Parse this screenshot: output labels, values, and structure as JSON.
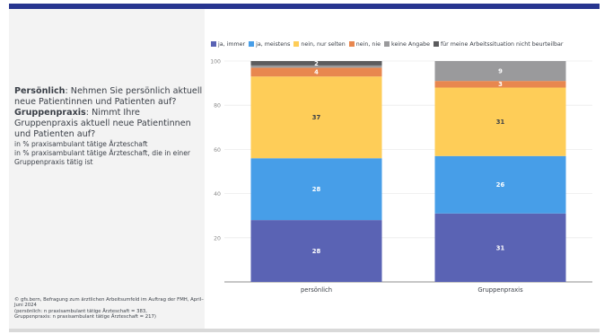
{
  "question": {
    "label1": "Persönlich",
    "text1": ": Nehmen Sie persönlich aktuell neue Patientinnen und Patienten auf?",
    "label2": "Gruppenpraxis",
    "text2": ": Nimmt Ihre Gruppenpraxis aktuell neue Patientinnen und Patienten auf?"
  },
  "note": {
    "line1": "in % praxisambulant tätige Ärzteschaft",
    "line2": "in % praxisambulant tätige Ärzteschaft, die in einer Gruppenpraxis tätig ist"
  },
  "source": {
    "line1": "© gfs.bern, Befragung zum ärztlichen Arbeitsumfeld im Auftrag der FMH, April–Juni 2024",
    "line2": "(persönlich: n praxisambulant tätige Ärzteschaft = 383,",
    "line3": "Gruppenpraxis: n praxisambulant tätige Ärzteschaft = 217)"
  },
  "colors": {
    "top_bar": "#27358f",
    "panel_bg": "#f3f3f3"
  },
  "chart_data": {
    "type": "bar",
    "stacked": true,
    "categories": [
      "persönlich",
      "Gruppenpraxis"
    ],
    "series": [
      {
        "name": "ja, immer",
        "color": "#5a63b4",
        "values": [
          28,
          31
        ]
      },
      {
        "name": "ja, meistens",
        "color": "#479ee8",
        "values": [
          28,
          26
        ]
      },
      {
        "name": "nein, nur selten",
        "color": "#fecd58",
        "values": [
          37,
          31
        ]
      },
      {
        "name": "nein, nie",
        "color": "#e8874f",
        "values": [
          4,
          3
        ]
      },
      {
        "name": "keine Angabe",
        "color": "#9a9a9c",
        "values": [
          1,
          9
        ]
      },
      {
        "name": "für meine Arbeitssituation nicht beurteilbar",
        "color": "#5c5c5e",
        "values": [
          2,
          0
        ]
      }
    ],
    "data_labels": [
      [
        "28",
        "31"
      ],
      [
        "28",
        "26"
      ],
      [
        "37",
        "31"
      ],
      [
        "4",
        "3"
      ],
      [
        "",
        "9"
      ],
      [
        "2",
        ""
      ]
    ],
    "yticks": [
      20,
      40,
      60,
      80,
      100
    ],
    "ylim": [
      0,
      100
    ],
    "grid": true,
    "legend": "top"
  }
}
